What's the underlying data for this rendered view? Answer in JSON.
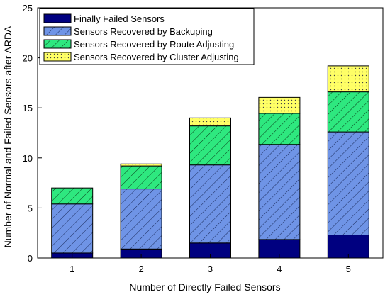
{
  "chart_data": {
    "type": "bar",
    "stacked": true,
    "title": "",
    "xlabel": "Number of Directly Failed Sensors",
    "ylabel": "Number of Normal and Failed Sensors after ARDA",
    "categories": [
      "1",
      "2",
      "3",
      "4",
      "5"
    ],
    "ylim": [
      0,
      25
    ],
    "yticks": [
      "0",
      "5",
      "10",
      "15",
      "20",
      "25"
    ],
    "grid": false,
    "legend_position": "top-left",
    "series": [
      {
        "name": "Finally Failed Sensors",
        "values": [
          0.5,
          0.9,
          1.5,
          1.85,
          2.3
        ],
        "color": "#000080",
        "pattern": "solid"
      },
      {
        "name": "Sensors Recovered by Backuping",
        "values": [
          4.9,
          6.0,
          7.8,
          9.5,
          10.3
        ],
        "color": "#6f94e6",
        "pattern": "diagonal-hatch"
      },
      {
        "name": "Sensors Recovered by Route Adjusting",
        "values": [
          1.6,
          2.3,
          3.9,
          3.1,
          4.0
        ],
        "color": "#2ee87f",
        "pattern": "diagonal-hatch"
      },
      {
        "name": "Sensors Recovered by Cluster Adjusting",
        "values": [
          0.0,
          0.2,
          0.8,
          1.6,
          2.6
        ],
        "color": "#ffff66",
        "pattern": "dots"
      }
    ]
  }
}
